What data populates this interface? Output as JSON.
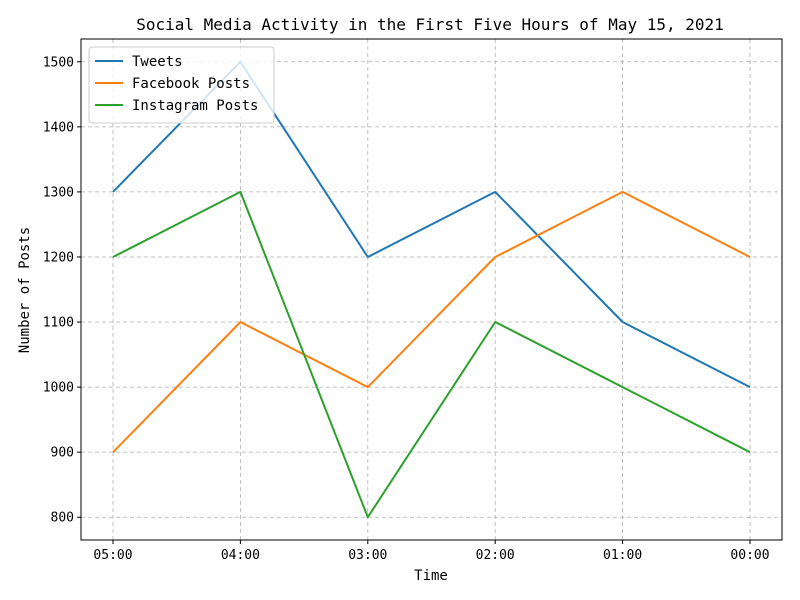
{
  "chart_data": {
    "type": "line",
    "title": "Social Media Activity in the First Five Hours of May 15, 2021",
    "xlabel": "Time",
    "ylabel": "Number of Posts",
    "categories": [
      "05:00",
      "04:00",
      "03:00",
      "02:00",
      "01:00",
      "00:00"
    ],
    "yticks": [
      800,
      900,
      1000,
      1100,
      1200,
      1300,
      1400,
      1500
    ],
    "ylim": [
      765,
      1535
    ],
    "grid": true,
    "legend_position": "top-left",
    "series": [
      {
        "name": "Tweets",
        "color": "#1f77b4",
        "values": [
          1300,
          1500,
          1200,
          1300,
          1100,
          1000
        ]
      },
      {
        "name": "Facebook Posts",
        "color": "#ff7f0e",
        "values": [
          900,
          1100,
          1000,
          1200,
          1300,
          1200
        ]
      },
      {
        "name": "Instagram Posts",
        "color": "#2ca02c",
        "values": [
          1200,
          1300,
          800,
          1100,
          1000,
          900
        ]
      }
    ]
  }
}
